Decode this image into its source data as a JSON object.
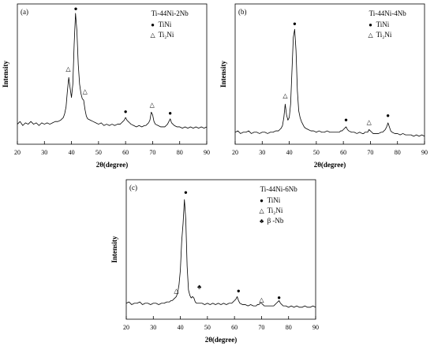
{
  "chart_data": [
    {
      "type": "line",
      "label": "(a)",
      "title": "Ti-44Ni-2Nb",
      "xlabel": "2θ(degree)",
      "ylabel": "Intensity",
      "color": "#000000",
      "xlim": [
        20,
        90
      ],
      "xticks": [
        20,
        30,
        40,
        50,
        60,
        70,
        80,
        90
      ],
      "ylim": [
        0,
        105
      ],
      "legend": [
        {
          "symbol": "●",
          "label": "TiNi"
        },
        {
          "symbol": "△",
          "label": "Ti₂Ni"
        }
      ],
      "x": [
        20,
        21,
        22,
        23,
        24,
        25,
        26,
        27,
        28,
        29,
        30,
        31,
        32,
        33,
        34,
        35,
        36,
        36.5,
        37,
        37.5,
        38,
        38.5,
        39,
        39.5,
        40,
        40.5,
        41,
        41.5,
        42,
        42.5,
        43,
        43.5,
        44,
        44.5,
        45,
        45.5,
        46,
        47,
        48,
        49,
        50,
        51,
        52,
        53,
        54,
        55,
        56,
        57,
        58,
        58.5,
        59,
        59.5,
        60,
        60.5,
        61,
        61.5,
        62,
        63,
        64,
        65,
        66,
        67,
        67.5,
        68,
        68.5,
        69,
        69.5,
        70,
        70.5,
        71,
        72,
        73,
        74,
        74.5,
        75,
        75.5,
        76,
        76.5,
        77,
        77.5,
        78,
        79,
        80,
        81,
        82,
        83,
        84,
        85,
        86,
        87,
        88,
        89,
        90
      ],
      "values": [
        15,
        17,
        14,
        16,
        15,
        17,
        15,
        16,
        14,
        16,
        15,
        16,
        15,
        16,
        17,
        17,
        18,
        19,
        20,
        23,
        28,
        40,
        50,
        42,
        35,
        45,
        75,
        98,
        85,
        60,
        45,
        38,
        34,
        33,
        26,
        21,
        19,
        18,
        17,
        16,
        15,
        16,
        14,
        15,
        14,
        15,
        14,
        15,
        15,
        16,
        17,
        18,
        20,
        18,
        17,
        16,
        15,
        14,
        13,
        14,
        13,
        14,
        14,
        15,
        16,
        18,
        24,
        22,
        17,
        15,
        14,
        13,
        13,
        13,
        14,
        15,
        17,
        19,
        16,
        15,
        14,
        13,
        13,
        12,
        13,
        12,
        13,
        12,
        13,
        12,
        13,
        12,
        13
      ],
      "annotations": [
        {
          "text": "●",
          "x": 41.6,
          "y": 101
        },
        {
          "text": "△",
          "x": 38.8,
          "y": 56
        },
        {
          "text": "△",
          "x": 45,
          "y": 39
        },
        {
          "text": "●",
          "x": 60,
          "y": 24
        },
        {
          "text": "△",
          "x": 69.8,
          "y": 29
        },
        {
          "text": "●",
          "x": 76.5,
          "y": 23
        }
      ]
    },
    {
      "type": "line",
      "label": "(b)",
      "title": "Ti-44Ni-4Nb",
      "xlabel": "2θ(degree)",
      "ylabel": "Intensity",
      "color": "#000000",
      "xlim": [
        20,
        90
      ],
      "xticks": [
        20,
        30,
        40,
        50,
        60,
        70,
        80,
        90
      ],
      "ylim": [
        0,
        105
      ],
      "legend": [
        {
          "symbol": "●",
          "label": "TiNi"
        },
        {
          "symbol": "△",
          "label": "Ti₂Ni"
        }
      ],
      "x": [
        20,
        21,
        22,
        23,
        24,
        25,
        26,
        27,
        28,
        29,
        30,
        31,
        32,
        33,
        34,
        35,
        36,
        36.5,
        37,
        37.5,
        38,
        38.5,
        39,
        39.5,
        40,
        40.5,
        41,
        41.5,
        42,
        42.5,
        43,
        43.5,
        44,
        44.5,
        45,
        45.5,
        46,
        47,
        48,
        49,
        50,
        51,
        52,
        53,
        54,
        55,
        56,
        57,
        58,
        58.5,
        59,
        59.5,
        60,
        60.5,
        61,
        61.5,
        62,
        63,
        64,
        65,
        66,
        67,
        67.5,
        68,
        68.5,
        69,
        69.5,
        70,
        70.5,
        71,
        72,
        73,
        74,
        74.5,
        75,
        75.5,
        76,
        76.5,
        77,
        77.5,
        78,
        79,
        80,
        81,
        82,
        83,
        84,
        85,
        86,
        87,
        88,
        89,
        90
      ],
      "values": [
        9,
        10,
        8,
        9,
        9,
        10,
        8,
        9,
        9,
        8,
        9,
        9,
        8,
        9,
        9,
        10,
        10,
        11,
        12,
        14,
        20,
        30,
        22,
        18,
        20,
        30,
        55,
        80,
        86,
        70,
        40,
        25,
        20,
        17,
        15,
        13,
        12,
        11,
        10,
        10,
        9,
        10,
        9,
        9,
        10,
        9,
        9,
        9,
        9,
        9,
        10,
        10,
        11,
        12,
        13,
        11,
        10,
        9,
        9,
        8,
        9,
        8,
        8,
        9,
        9,
        9,
        11,
        10,
        9,
        8,
        8,
        8,
        9,
        9,
        10,
        11,
        13,
        16,
        13,
        10,
        9,
        8,
        8,
        7,
        8,
        7,
        7,
        7,
        6,
        7,
        6,
        7,
        6
      ],
      "annotations": [
        {
          "text": "●",
          "x": 42,
          "y": 90
        },
        {
          "text": "△",
          "x": 38.5,
          "y": 36
        },
        {
          "text": "●",
          "x": 61,
          "y": 18
        },
        {
          "text": "△",
          "x": 69.5,
          "y": 16
        },
        {
          "text": "●",
          "x": 76.5,
          "y": 21
        }
      ]
    },
    {
      "type": "line",
      "label": "(c)",
      "title": "Ti-44Ni-6Nb",
      "xlabel": "2θ(degree)",
      "ylabel": "Intensity",
      "color": "#000000",
      "xlim": [
        20,
        90
      ],
      "xticks": [
        20,
        30,
        40,
        50,
        60,
        70,
        80,
        90
      ],
      "ylim": [
        0,
        105
      ],
      "legend": [
        {
          "symbol": "●",
          "label": "TiNi"
        },
        {
          "symbol": "△",
          "label": "Ti₂Ni"
        },
        {
          "symbol": "♣",
          "label": "β -Nb"
        }
      ],
      "x": [
        20,
        21,
        22,
        23,
        24,
        25,
        26,
        27,
        28,
        29,
        30,
        31,
        32,
        33,
        34,
        35,
        36,
        36.5,
        37,
        37.5,
        38,
        38.5,
        39,
        39.5,
        40,
        40.5,
        41,
        41.5,
        42,
        42.5,
        43,
        43.5,
        44,
        44.5,
        45,
        45.5,
        46,
        47,
        48,
        49,
        50,
        51,
        52,
        53,
        54,
        55,
        56,
        57,
        58,
        58.5,
        59,
        59.5,
        60,
        60.5,
        61,
        61.5,
        62,
        63,
        64,
        65,
        66,
        67,
        67.5,
        68,
        68.5,
        69,
        69.5,
        70,
        70.5,
        71,
        72,
        73,
        74,
        74.5,
        75,
        75.5,
        76,
        76.5,
        77,
        77.5,
        78,
        79,
        80,
        81,
        82,
        83,
        84,
        85,
        86,
        87,
        88,
        89,
        90
      ],
      "values": [
        12,
        13,
        11,
        12,
        12,
        13,
        11,
        12,
        12,
        11,
        12,
        12,
        11,
        12,
        12,
        13,
        13,
        14,
        14,
        15,
        16,
        17,
        20,
        26,
        37,
        59,
        72,
        90,
        75,
        40,
        22,
        18,
        16,
        17,
        16,
        13,
        12,
        12,
        12,
        11,
        12,
        11,
        12,
        11,
        12,
        11,
        12,
        11,
        12,
        12,
        12,
        13,
        14,
        15,
        17,
        14,
        12,
        11,
        11,
        10,
        11,
        10,
        10,
        10,
        11,
        11,
        12,
        12,
        11,
        10,
        10,
        10,
        10,
        10,
        11,
        12,
        13,
        14,
        12,
        11,
        10,
        10,
        9,
        10,
        9,
        10,
        9,
        9,
        10,
        9,
        9,
        10,
        9
      ],
      "annotations": [
        {
          "text": "●",
          "x": 42,
          "y": 95
        },
        {
          "text": "△",
          "x": 38.5,
          "y": 21
        },
        {
          "text": "♣",
          "x": 47,
          "y": 24
        },
        {
          "text": "●",
          "x": 61.5,
          "y": 21
        },
        {
          "text": "△",
          "x": 70,
          "y": 14
        },
        {
          "text": "●",
          "x": 76.5,
          "y": 16
        }
      ]
    }
  ]
}
